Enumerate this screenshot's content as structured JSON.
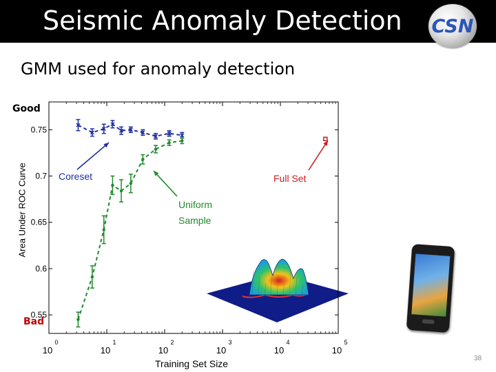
{
  "slide": {
    "title": "Seismic Anomaly Detection",
    "logo_text": "CSN",
    "subtitle": "GMM used for anomaly detection",
    "good_label": "Good",
    "bad_label": "Bad",
    "page_number": "38",
    "title_bar_color": "#000000"
  },
  "chart_data": {
    "type": "line",
    "title": "",
    "xlabel": "Training Set Size",
    "ylabel": "Area Under ROC Curve",
    "x_scale": "log",
    "xlim": [
      1,
      100000
    ],
    "ylim": [
      0.53,
      0.78
    ],
    "x_ticks": [
      {
        "value": 1,
        "base": "10",
        "exp": "0"
      },
      {
        "value": 10,
        "base": "10",
        "exp": "1"
      },
      {
        "value": 100,
        "base": "10",
        "exp": "2"
      },
      {
        "value": 1000,
        "base": "10",
        "exp": "3"
      },
      {
        "value": 10000,
        "base": "10",
        "exp": "4"
      },
      {
        "value": 100000,
        "base": "10",
        "exp": "5"
      }
    ],
    "y_ticks": [
      {
        "value": 0.55,
        "label": "0.55"
      },
      {
        "value": 0.6,
        "label": "0.6"
      },
      {
        "value": 0.65,
        "label": "0.65"
      },
      {
        "value": 0.7,
        "label": "0.7"
      },
      {
        "value": 0.75,
        "label": "0.75"
      }
    ],
    "grid": false,
    "series": [
      {
        "name": "Coreset",
        "color": "#1f2fa0",
        "style": "dashed",
        "marker": "x",
        "points": [
          {
            "x": 3.2,
            "y": 0.755,
            "err": 0.006
          },
          {
            "x": 5.6,
            "y": 0.747,
            "err": 0.004
          },
          {
            "x": 8.9,
            "y": 0.751,
            "err": 0.005
          },
          {
            "x": 12.6,
            "y": 0.756,
            "err": 0.004
          },
          {
            "x": 17.8,
            "y": 0.749,
            "err": 0.004
          },
          {
            "x": 26.0,
            "y": 0.75,
            "err": 0.003
          },
          {
            "x": 42.0,
            "y": 0.747,
            "err": 0.003
          },
          {
            "x": 70.0,
            "y": 0.743,
            "err": 0.003
          },
          {
            "x": 120.0,
            "y": 0.746,
            "err": 0.003
          },
          {
            "x": 200.0,
            "y": 0.744,
            "err": 0.003
          }
        ]
      },
      {
        "name": "Uniform Sample",
        "color": "#1f8a2a",
        "style": "dashed",
        "marker": "dot",
        "points": [
          {
            "x": 3.2,
            "y": 0.545,
            "err": 0.008
          },
          {
            "x": 5.6,
            "y": 0.591,
            "err": 0.012
          },
          {
            "x": 8.9,
            "y": 0.642,
            "err": 0.015
          },
          {
            "x": 12.6,
            "y": 0.69,
            "err": 0.01
          },
          {
            "x": 17.8,
            "y": 0.684,
            "err": 0.012
          },
          {
            "x": 26.0,
            "y": 0.692,
            "err": 0.01
          },
          {
            "x": 42.0,
            "y": 0.718,
            "err": 0.005
          },
          {
            "x": 70.0,
            "y": 0.729,
            "err": 0.004
          },
          {
            "x": 120.0,
            "y": 0.736,
            "err": 0.003
          },
          {
            "x": 200.0,
            "y": 0.738,
            "err": 0.003
          }
        ]
      },
      {
        "name": "Full Set",
        "color": "#cc1b1b",
        "style": "marker",
        "marker": "square",
        "points": [
          {
            "x": 60000,
            "y": 0.74
          }
        ]
      }
    ],
    "annotations": [
      {
        "text": "Coreset",
        "color": "#1f2fa0",
        "arrow_to_series": "Coreset"
      },
      {
        "text": "Full Set",
        "color": "#cc1b1b",
        "arrow_to_series": "Full Set"
      },
      {
        "text": [
          "Uniform",
          "Sample"
        ],
        "color": "#1f8a2a",
        "arrow_to_series": "Uniform Sample"
      }
    ]
  }
}
